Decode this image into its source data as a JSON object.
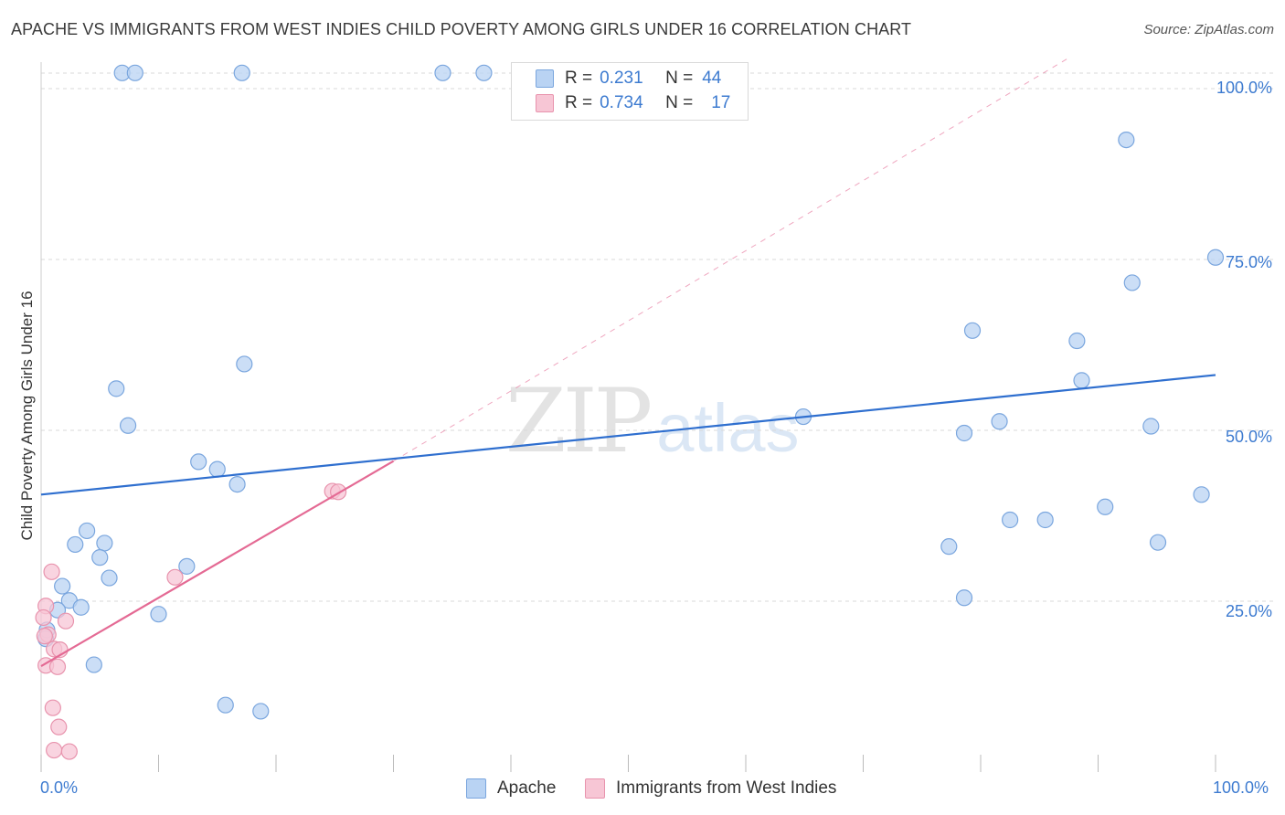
{
  "title": "APACHE VS IMMIGRANTS FROM WEST INDIES CHILD POVERTY AMONG GIRLS UNDER 16 CORRELATION CHART",
  "source": "Source: ZipAtlas.com",
  "watermark": {
    "zip": "ZIP",
    "atlas": "atlas"
  },
  "legend": {
    "rows": [
      {
        "r_label": "R =",
        "r_value": "0.231",
        "n_label": "N =",
        "n_value": "44"
      },
      {
        "r_label": "R =",
        "r_value": "0.734",
        "n_label": "N =",
        "n_value": "17"
      }
    ]
  },
  "colors": {
    "apache_fill": "#b9d3f3",
    "apache_stroke": "#7aa6de",
    "apache_line": "#2f6fcf",
    "wi_fill": "#f7c6d5",
    "wi_stroke": "#e893ad",
    "wi_line": "#e46a94",
    "grid": "#d9d9d9",
    "tick_text": "#3d7bd0"
  },
  "chart_data": {
    "type": "scatter",
    "title": "APACHE VS IMMIGRANTS FROM WEST INDIES CHILD POVERTY AMONG GIRLS UNDER 16 CORRELATION CHART",
    "xlabel": "",
    "ylabel": "Child Poverty Among Girls Under 16",
    "xlim": [
      0,
      100
    ],
    "ylim": [
      0,
      100
    ],
    "x_tick_labels": [
      "0.0%",
      "100.0%"
    ],
    "y_tick_labels": [
      "25.0%",
      "50.0%",
      "75.0%",
      "100.0%"
    ],
    "y_ticks": [
      25,
      50,
      75,
      100
    ],
    "series": [
      {
        "name": "Apache",
        "r": 0.231,
        "n": 44,
        "trend": {
          "x": [
            0,
            100
          ],
          "y": [
            40.6,
            58.1
          ]
        },
        "points": [
          [
            6.9,
            102.3
          ],
          [
            8.0,
            102.3
          ],
          [
            17.1,
            102.3
          ],
          [
            34.2,
            102.3
          ],
          [
            37.7,
            102.3
          ],
          [
            92.4,
            92.5
          ],
          [
            100,
            75.3
          ],
          [
            92.9,
            71.6
          ],
          [
            79.3,
            64.6
          ],
          [
            88.2,
            63.1
          ],
          [
            17.3,
            59.7
          ],
          [
            6.4,
            56.1
          ],
          [
            88.6,
            57.3
          ],
          [
            64.9,
            52.0
          ],
          [
            81.6,
            51.3
          ],
          [
            94.5,
            50.6
          ],
          [
            7.4,
            50.7
          ],
          [
            78.6,
            49.6
          ],
          [
            13.4,
            45.4
          ],
          [
            15.0,
            44.3
          ],
          [
            16.7,
            42.1
          ],
          [
            98.8,
            40.6
          ],
          [
            90.6,
            38.8
          ],
          [
            82.5,
            36.9
          ],
          [
            85.5,
            36.9
          ],
          [
            3.9,
            35.3
          ],
          [
            5.4,
            33.5
          ],
          [
            2.9,
            33.3
          ],
          [
            77.3,
            33.0
          ],
          [
            95.1,
            33.6
          ],
          [
            5.0,
            31.4
          ],
          [
            12.4,
            30.1
          ],
          [
            5.8,
            28.4
          ],
          [
            1.8,
            27.2
          ],
          [
            2.4,
            25.1
          ],
          [
            3.4,
            24.1
          ],
          [
            1.4,
            23.7
          ],
          [
            10.0,
            23.1
          ],
          [
            78.6,
            25.5
          ],
          [
            0.5,
            20.8
          ],
          [
            0.4,
            19.5
          ],
          [
            4.5,
            15.7
          ],
          [
            15.7,
            9.8
          ],
          [
            18.7,
            8.9
          ]
        ]
      },
      {
        "name": "Immigrants from West Indies",
        "r": 0.734,
        "n": 17,
        "trend": {
          "x": [
            0,
            30
          ],
          "y": [
            15.5,
            45.5
          ]
        },
        "trend_extended": {
          "x": [
            30,
            87.5
          ],
          "y": [
            45.5,
            104.5
          ]
        },
        "points": [
          [
            0.9,
            29.3
          ],
          [
            11.4,
            28.5
          ],
          [
            0.4,
            24.3
          ],
          [
            2.1,
            22.1
          ],
          [
            0.2,
            22.6
          ],
          [
            0.6,
            20.1
          ],
          [
            1.1,
            18.0
          ],
          [
            1.6,
            17.9
          ],
          [
            0.4,
            15.6
          ],
          [
            1.4,
            15.4
          ],
          [
            24.8,
            41.1
          ],
          [
            25.3,
            41.0
          ],
          [
            1.0,
            9.4
          ],
          [
            1.5,
            6.6
          ],
          [
            1.1,
            3.2
          ],
          [
            2.4,
            3.0
          ],
          [
            0.3,
            19.9
          ]
        ]
      }
    ]
  }
}
